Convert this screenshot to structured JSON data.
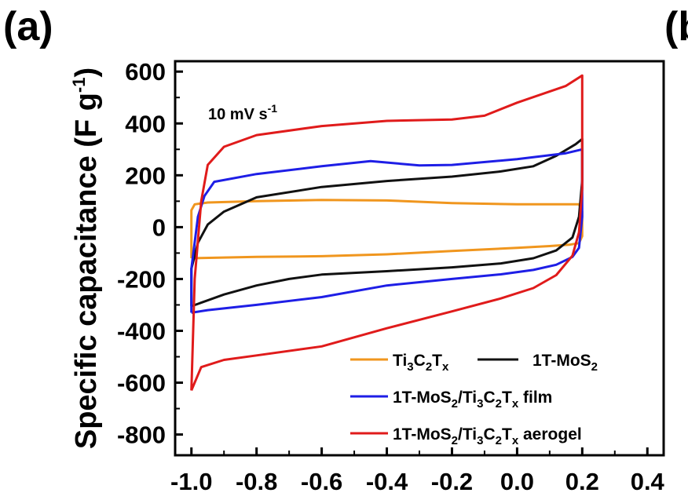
{
  "panel_labels": {
    "left": "(a)",
    "right_partial": "(b"
  },
  "chart_data": {
    "type": "line",
    "annotation": {
      "text": "10 mV s",
      "superscript": "-1"
    },
    "ylabel": {
      "text": "Specific capacitance (F g",
      "superscript": "-1",
      "suffix": ")"
    },
    "xlabel": "",
    "xlim": [
      -1.05,
      0.45
    ],
    "ylim": [
      -880,
      640
    ],
    "xticks": [
      -1.0,
      -0.8,
      -0.6,
      -0.4,
      -0.2,
      0.0,
      0.2,
      0.4
    ],
    "xtick_labels": [
      "-1.0",
      "-0.8",
      "-0.6",
      "-0.4",
      "-0.2",
      "0.0",
      "0.2",
      "0.4"
    ],
    "yticks": [
      600,
      400,
      200,
      0,
      -200,
      -400,
      -600,
      -800
    ],
    "ytick_labels": [
      "600",
      "400",
      "200",
      "0",
      "-200",
      "-400",
      "-600",
      "-800"
    ],
    "grid": false,
    "legend_position": "bottom-right",
    "series": [
      {
        "key": "ti3c2tx",
        "name": "Ti3C2Tx",
        "legend_parts": [
          [
            "Ti",
            ""
          ],
          [
            "3",
            "sub"
          ],
          [
            "C",
            ""
          ],
          [
            "2",
            "sub"
          ],
          [
            "T",
            ""
          ],
          [
            "x",
            "sub"
          ]
        ],
        "color": "#F0961E",
        "points": [
          [
            -1.0,
            -120
          ],
          [
            -0.8,
            -115
          ],
          [
            -0.6,
            -112
          ],
          [
            -0.4,
            -105
          ],
          [
            -0.2,
            -92
          ],
          [
            0.0,
            -80
          ],
          [
            0.1,
            -73
          ],
          [
            0.16,
            -68
          ],
          [
            0.19,
            -62
          ],
          [
            0.2,
            -35
          ],
          [
            0.2,
            60
          ],
          [
            0.19,
            88
          ],
          [
            0.1,
            88
          ],
          [
            0.0,
            88
          ],
          [
            -0.2,
            93
          ],
          [
            -0.4,
            103
          ],
          [
            -0.6,
            105
          ],
          [
            -0.8,
            100
          ],
          [
            -0.95,
            95
          ],
          [
            -0.99,
            88
          ],
          [
            -1.0,
            65
          ],
          [
            -1.0,
            -120
          ]
        ]
      },
      {
        "key": "mos2",
        "name": "1T-MoS2",
        "legend_parts": [
          [
            "1T-MoS",
            ""
          ],
          [
            "2",
            "sub"
          ]
        ],
        "color": "#111111",
        "points": [
          [
            -1.0,
            -305
          ],
          [
            -0.9,
            -260
          ],
          [
            -0.8,
            -225
          ],
          [
            -0.7,
            -200
          ],
          [
            -0.6,
            -183
          ],
          [
            -0.4,
            -170
          ],
          [
            -0.2,
            -155
          ],
          [
            -0.05,
            -140
          ],
          [
            0.05,
            -120
          ],
          [
            0.12,
            -90
          ],
          [
            0.17,
            -40
          ],
          [
            0.19,
            40
          ],
          [
            0.2,
            180
          ],
          [
            0.2,
            340
          ],
          [
            0.18,
            320
          ],
          [
            0.12,
            275
          ],
          [
            0.05,
            235
          ],
          [
            -0.05,
            215
          ],
          [
            -0.2,
            195
          ],
          [
            -0.4,
            178
          ],
          [
            -0.6,
            155
          ],
          [
            -0.8,
            115
          ],
          [
            -0.9,
            60
          ],
          [
            -0.95,
            10
          ],
          [
            -0.98,
            -60
          ],
          [
            -1.0,
            -160
          ],
          [
            -1.0,
            -305
          ]
        ]
      },
      {
        "key": "film",
        "name": "1T-MoS2/Ti3C2Tx film",
        "legend_parts": [
          [
            "1T-MoS",
            ""
          ],
          [
            "2",
            "sub"
          ],
          [
            "/Ti",
            ""
          ],
          [
            "3",
            "sub"
          ],
          [
            "C",
            ""
          ],
          [
            "2",
            "sub"
          ],
          [
            "T",
            ""
          ],
          [
            "x",
            "sub"
          ],
          [
            " film",
            ""
          ]
        ],
        "color": "#1E1EE6",
        "points": [
          [
            -1.0,
            -330
          ],
          [
            -0.95,
            -320
          ],
          [
            -0.8,
            -300
          ],
          [
            -0.6,
            -270
          ],
          [
            -0.4,
            -225
          ],
          [
            -0.2,
            -200
          ],
          [
            -0.05,
            -182
          ],
          [
            0.05,
            -165
          ],
          [
            0.12,
            -145
          ],
          [
            0.17,
            -115
          ],
          [
            0.19,
            -80
          ],
          [
            0.2,
            40
          ],
          [
            0.2,
            300
          ],
          [
            0.15,
            285
          ],
          [
            0.0,
            262
          ],
          [
            -0.2,
            240
          ],
          [
            -0.3,
            238
          ],
          [
            -0.45,
            255
          ],
          [
            -0.6,
            235
          ],
          [
            -0.8,
            205
          ],
          [
            -0.93,
            175
          ],
          [
            -0.96,
            120
          ],
          [
            -0.98,
            40
          ],
          [
            -1.0,
            -160
          ],
          [
            -1.0,
            -330
          ]
        ]
      },
      {
        "key": "aerogel",
        "name": "1T-MoS2/Ti3C2Tx aerogel",
        "legend_parts": [
          [
            "1T-MoS",
            ""
          ],
          [
            "2",
            "sub"
          ],
          [
            "/Ti",
            ""
          ],
          [
            "3",
            "sub"
          ],
          [
            "C",
            ""
          ],
          [
            "2",
            "sub"
          ],
          [
            "T",
            ""
          ],
          [
            "x",
            "sub"
          ],
          [
            " aerogel",
            ""
          ]
        ],
        "color": "#E01B1B",
        "points": [
          [
            -1.0,
            -630
          ],
          [
            -0.97,
            -540
          ],
          [
            -0.9,
            -512
          ],
          [
            -0.8,
            -495
          ],
          [
            -0.6,
            -460
          ],
          [
            -0.4,
            -390
          ],
          [
            -0.2,
            -325
          ],
          [
            -0.05,
            -275
          ],
          [
            0.05,
            -235
          ],
          [
            0.12,
            -185
          ],
          [
            0.17,
            -110
          ],
          [
            0.19,
            -20
          ],
          [
            0.2,
            150
          ],
          [
            0.2,
            585
          ],
          [
            0.15,
            545
          ],
          [
            0.0,
            480
          ],
          [
            -0.1,
            430
          ],
          [
            -0.2,
            415
          ],
          [
            -0.4,
            410
          ],
          [
            -0.6,
            390
          ],
          [
            -0.8,
            355
          ],
          [
            -0.9,
            310
          ],
          [
            -0.95,
            240
          ],
          [
            -0.97,
            100
          ],
          [
            -0.99,
            -200
          ],
          [
            -1.0,
            -630
          ]
        ]
      }
    ]
  }
}
